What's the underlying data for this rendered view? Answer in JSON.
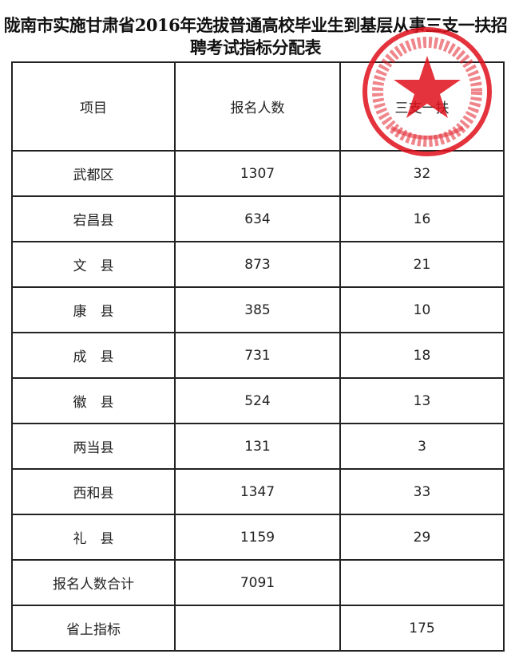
{
  "title_line1": "陇南市实施甘肃省2016年选拔普通高校毕业生到基层从事三支一扶招",
  "title_line2": "聘考试指标分配表",
  "headers": [
    "项目",
    "报名人数",
    "三支一扶"
  ],
  "rows": [
    {
      "item": "武都区",
      "applicants": "1307",
      "quota": "32"
    },
    {
      "item": "宕昌县",
      "applicants": "634",
      "quota": "16"
    },
    {
      "item": "文　县",
      "applicants": "873",
      "quota": "21"
    },
    {
      "item": "康　县",
      "applicants": "385",
      "quota": "10"
    },
    {
      "item": "成　县",
      "applicants": "731",
      "quota": "18"
    },
    {
      "item": "徽　县",
      "applicants": "524",
      "quota": "13"
    },
    {
      "item": "两当县",
      "applicants": "131",
      "quota": "3"
    },
    {
      "item": "西和县",
      "applicants": "1347",
      "quota": "33"
    },
    {
      "item": "礼　县",
      "applicants": "1159",
      "quota": "29"
    },
    {
      "item": "报名人数合计",
      "applicants": "7091",
      "quota": ""
    },
    {
      "item": "省上指标",
      "applicants": "",
      "quota": "175"
    }
  ],
  "stamp_color": "#e0101c"
}
